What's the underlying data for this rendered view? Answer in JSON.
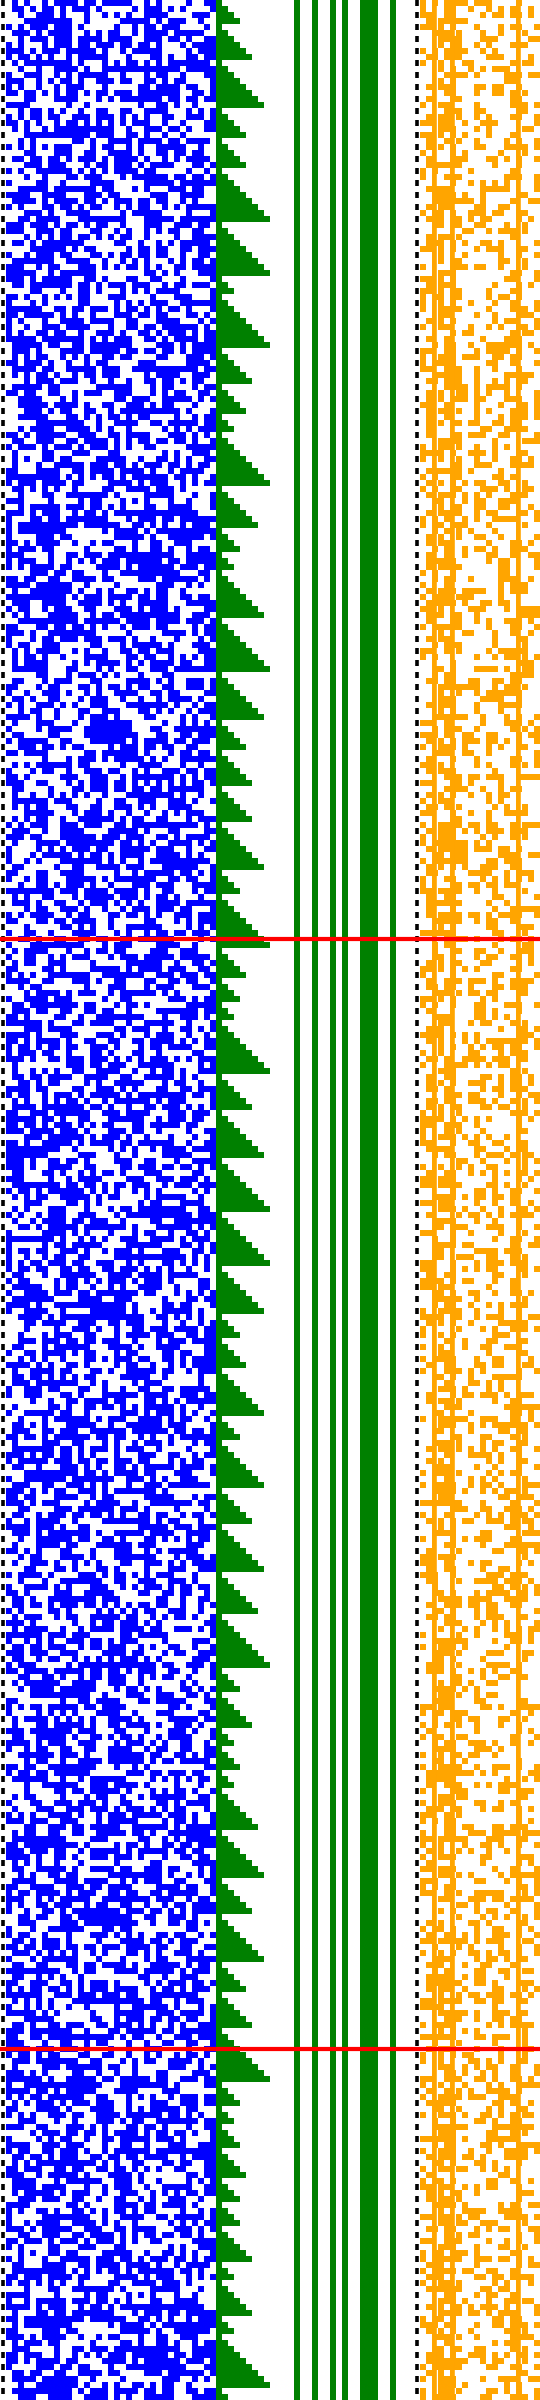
{
  "colors": {
    "background": "#ffffff",
    "blue_cells": "#0000ff",
    "green_cells": "#008000",
    "orange_cells": "#ffa500",
    "markers": "#ff0000",
    "dotted_border": "#000000"
  },
  "grid": {
    "rows": 400,
    "columns": 90,
    "regions": [
      {
        "name": "blue-noise-region",
        "color": "blue_cells",
        "col_start": 1,
        "col_end": 35
      },
      {
        "name": "green-staircase-region",
        "color": "green_cells",
        "col_start": 36,
        "col_end": 44
      },
      {
        "name": "green-stripes-region",
        "color": "green_cells",
        "col_start": 45,
        "col_end": 68
      },
      {
        "name": "orange-noise-region",
        "color": "orange_cells",
        "col_start": 70,
        "col_end": 89
      }
    ],
    "green_stripe_columns": [
      49,
      52,
      55,
      57,
      60,
      61,
      62,
      65
    ],
    "dotted_columns": [
      0,
      69
    ],
    "marker_rows": [
      156,
      341
    ]
  }
}
